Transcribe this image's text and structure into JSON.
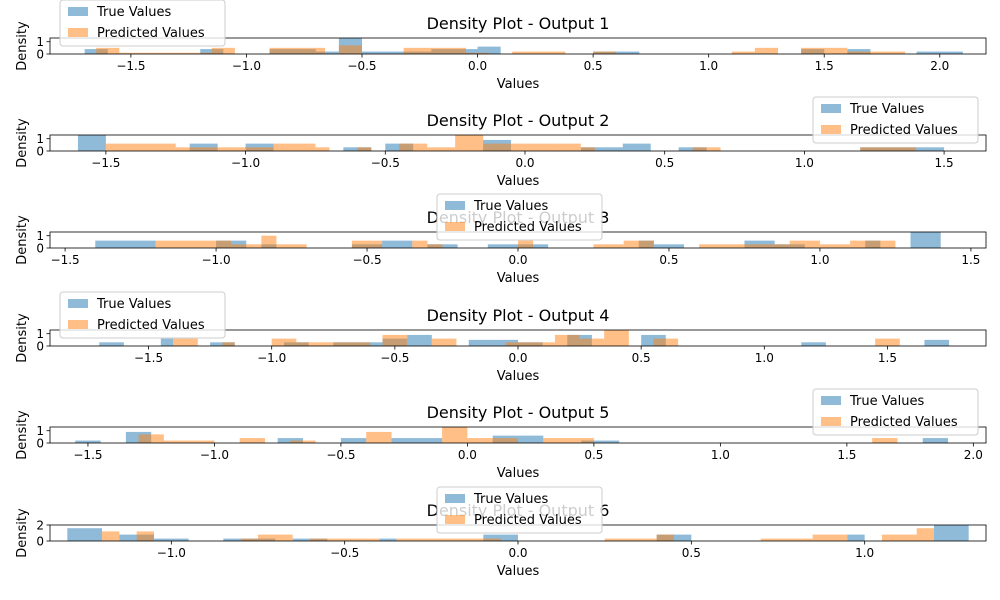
{
  "colors": {
    "true_values": "#1f77b4",
    "predicted_values": "#ff7f0e"
  },
  "chart_data": [
    {
      "type": "histogram",
      "title": "Density Plot - Output 1",
      "xlabel": "Values",
      "ylabel": "Density",
      "xlim": [
        -1.85,
        2.2
      ],
      "ylim": [
        0,
        1.3
      ],
      "xticks": [
        -1.5,
        -1.0,
        -0.5,
        0.0,
        0.5,
        1.0,
        1.5,
        2.0
      ],
      "xtick_labels": [
        "−1.5",
        "−1.0",
        "−0.5",
        "0.0",
        "0.5",
        "1.0",
        "1.5",
        "2.0"
      ],
      "yticks": [
        0,
        1
      ],
      "ytick_labels": [
        "0",
        "1"
      ],
      "legend": {
        "placement": "top-left",
        "entries": [
          "True Values",
          "Predicted Values"
        ]
      },
      "series": [
        {
          "name": "True Values",
          "bins": [
            [
              -1.7,
              -1.6,
              0.4
            ],
            [
              -1.2,
              -1.1,
              0.4
            ],
            [
              -0.9,
              -0.7,
              0.4
            ],
            [
              -0.7,
              -0.6,
              0.2
            ],
            [
              -0.6,
              -0.5,
              1.3
            ],
            [
              -0.5,
              -0.2,
              0.2
            ],
            [
              -0.2,
              0.0,
              0.4
            ],
            [
              0.0,
              0.1,
              0.6
            ],
            [
              0.5,
              0.7,
              0.2
            ],
            [
              1.4,
              1.5,
              0.4
            ],
            [
              1.6,
              1.7,
              0.4
            ],
            [
              1.9,
              2.1,
              0.2
            ]
          ]
        },
        {
          "name": "Predicted Values",
          "bins": [
            [
              -1.65,
              -1.55,
              0.5
            ],
            [
              -1.55,
              -1.15,
              0.1
            ],
            [
              -1.15,
              -1.05,
              0.5
            ],
            [
              -0.9,
              -0.66,
              0.5
            ],
            [
              -0.6,
              -0.5,
              0.7
            ],
            [
              -0.32,
              -0.05,
              0.5
            ],
            [
              -0.05,
              0.05,
              0.1
            ],
            [
              0.15,
              0.38,
              0.2
            ],
            [
              0.5,
              0.6,
              0.2
            ],
            [
              1.1,
              1.2,
              0.2
            ],
            [
              1.2,
              1.3,
              0.5
            ],
            [
              1.4,
              1.6,
              0.5
            ],
            [
              1.6,
              1.85,
              0.2
            ]
          ]
        }
      ]
    },
    {
      "type": "histogram",
      "title": "Density Plot - Output 2",
      "xlabel": "Values",
      "ylabel": "Density",
      "xlim": [
        -1.7,
        1.65
      ],
      "ylim": [
        0,
        1.3
      ],
      "xticks": [
        -1.5,
        -1.0,
        -0.5,
        0.0,
        0.5,
        1.0,
        1.5
      ],
      "xtick_labels": [
        "−1.5",
        "−1.0",
        "−0.5",
        "0.0",
        "0.5",
        "1.0",
        "1.5"
      ],
      "yticks": [
        0,
        1
      ],
      "ytick_labels": [
        "0",
        "1"
      ],
      "legend": {
        "placement": "top-right",
        "entries": [
          "True Values",
          "Predicted Values"
        ]
      },
      "series": [
        {
          "name": "True Values",
          "bins": [
            [
              -1.6,
              -1.5,
              1.3
            ],
            [
              -1.2,
              -1.1,
              0.6
            ],
            [
              -1.0,
              -0.9,
              0.6
            ],
            [
              -0.65,
              -0.55,
              0.3
            ],
            [
              -0.5,
              -0.4,
              0.6
            ],
            [
              -0.15,
              -0.05,
              0.9
            ],
            [
              0.2,
              0.35,
              0.3
            ],
            [
              0.35,
              0.45,
              0.6
            ],
            [
              0.55,
              0.65,
              0.3
            ],
            [
              1.2,
              1.5,
              0.3
            ]
          ]
        },
        {
          "name": "Predicted Values",
          "bins": [
            [
              -1.5,
              -1.25,
              0.6
            ],
            [
              -1.25,
              -1.05,
              0.3
            ],
            [
              -1.05,
              -0.9,
              0.3
            ],
            [
              -0.9,
              -0.75,
              0.6
            ],
            [
              -0.75,
              -0.7,
              0.3
            ],
            [
              -0.6,
              -0.55,
              0.3
            ],
            [
              -0.45,
              -0.35,
              0.6
            ],
            [
              -0.35,
              -0.25,
              0.3
            ],
            [
              -0.25,
              -0.15,
              1.3
            ],
            [
              -0.15,
              0.1,
              0.6
            ],
            [
              0.1,
              0.2,
              0.6
            ],
            [
              0.2,
              0.25,
              0.3
            ],
            [
              0.6,
              0.7,
              0.3
            ],
            [
              1.2,
              1.4,
              0.3
            ]
          ]
        }
      ]
    },
    {
      "type": "histogram",
      "title": "Density Plot - Output 3",
      "xlabel": "Values",
      "ylabel": "Density",
      "xlim": [
        -1.55,
        1.55
      ],
      "ylim": [
        0,
        1.3
      ],
      "xticks": [
        -1.5,
        -1.0,
        -0.5,
        0.0,
        0.5,
        1.0,
        1.5
      ],
      "xtick_labels": [
        "−1.5",
        "−1.0",
        "−0.5",
        "0.0",
        "0.5",
        "1.0",
        "1.5"
      ],
      "yticks": [
        0,
        1
      ],
      "ytick_labels": [
        "0",
        "1"
      ],
      "legend": {
        "placement": "top-center",
        "entries": [
          "True Values",
          "Predicted Values"
        ]
      },
      "series": [
        {
          "name": "True Values",
          "bins": [
            [
              -1.4,
              -1.2,
              0.6
            ],
            [
              -1.0,
              -0.9,
              0.6
            ],
            [
              -0.85,
              -0.8,
              0.3
            ],
            [
              -0.55,
              -0.45,
              0.3
            ],
            [
              -0.45,
              -0.35,
              0.6
            ],
            [
              -0.3,
              -0.2,
              0.3
            ],
            [
              -0.1,
              0.1,
              0.3
            ],
            [
              0.4,
              0.45,
              0.6
            ],
            [
              0.45,
              0.55,
              0.3
            ],
            [
              0.75,
              0.85,
              0.6
            ],
            [
              0.85,
              0.95,
              0.3
            ],
            [
              1.15,
              1.2,
              0.6
            ],
            [
              1.3,
              1.4,
              1.3
            ]
          ]
        },
        {
          "name": "Predicted Values",
          "bins": [
            [
              -1.2,
              -0.95,
              0.6
            ],
            [
              -0.95,
              -0.85,
              0.3
            ],
            [
              -0.85,
              -0.8,
              1.0
            ],
            [
              -0.8,
              -0.7,
              0.3
            ],
            [
              -0.55,
              -0.45,
              0.6
            ],
            [
              -0.35,
              -0.3,
              0.6
            ],
            [
              -0.3,
              -0.25,
              0.3
            ],
            [
              0.0,
              0.05,
              0.6
            ],
            [
              0.25,
              0.35,
              0.3
            ],
            [
              0.35,
              0.45,
              0.6
            ],
            [
              0.6,
              0.9,
              0.3
            ],
            [
              0.9,
              1.0,
              0.6
            ],
            [
              1.0,
              1.1,
              0.3
            ],
            [
              1.1,
              1.25,
              0.6
            ]
          ]
        }
      ]
    },
    {
      "type": "histogram",
      "title": "Density Plot - Output 4",
      "xlabel": "Values",
      "ylabel": "Density",
      "xlim": [
        -1.9,
        1.9
      ],
      "ylim": [
        0,
        1.3
      ],
      "xticks": [
        -1.5,
        -1.0,
        -0.5,
        0.0,
        0.5,
        1.0,
        1.5
      ],
      "xtick_labels": [
        "−1.5",
        "−1.0",
        "−0.5",
        "0.0",
        "0.5",
        "1.0",
        "1.5"
      ],
      "yticks": [
        0,
        1
      ],
      "ytick_labels": [
        "0",
        "1"
      ],
      "legend": {
        "placement": "top-left",
        "entries": [
          "True Values",
          "Predicted Values"
        ]
      },
      "series": [
        {
          "name": "True Values",
          "bins": [
            [
              -1.7,
              -1.6,
              0.3
            ],
            [
              -1.45,
              -1.4,
              0.6
            ],
            [
              -1.25,
              -1.15,
              0.3
            ],
            [
              -0.95,
              -0.85,
              0.3
            ],
            [
              -0.75,
              -0.55,
              0.3
            ],
            [
              -0.55,
              -0.45,
              0.6
            ],
            [
              -0.45,
              -0.35,
              0.9
            ],
            [
              -0.2,
              0.0,
              0.5
            ],
            [
              0.0,
              0.1,
              0.3
            ],
            [
              0.2,
              0.3,
              0.9
            ],
            [
              0.5,
              0.6,
              0.9
            ],
            [
              1.15,
              1.25,
              0.3
            ],
            [
              1.65,
              1.75,
              0.5
            ]
          ]
        },
        {
          "name": "Predicted Values",
          "bins": [
            [
              -1.4,
              -1.3,
              0.6
            ],
            [
              -1.2,
              -1.15,
              0.3
            ],
            [
              -1.0,
              -0.9,
              0.6
            ],
            [
              -0.9,
              -0.6,
              0.3
            ],
            [
              -0.55,
              -0.45,
              0.9
            ],
            [
              -0.35,
              -0.25,
              0.6
            ],
            [
              -0.05,
              0.15,
              0.3
            ],
            [
              0.15,
              0.25,
              0.9
            ],
            [
              0.25,
              0.35,
              0.6
            ],
            [
              0.35,
              0.45,
              1.3
            ],
            [
              0.55,
              0.65,
              0.6
            ],
            [
              1.45,
              1.55,
              0.6
            ]
          ]
        }
      ]
    },
    {
      "type": "histogram",
      "title": "Density Plot - Output 5",
      "xlabel": "Values",
      "ylabel": "Density",
      "xlim": [
        -1.65,
        2.05
      ],
      "ylim": [
        0,
        1.3
      ],
      "xticks": [
        -1.5,
        -1.0,
        -0.5,
        0.0,
        0.5,
        1.0,
        1.5,
        2.0
      ],
      "xtick_labels": [
        "−1.5",
        "−1.0",
        "−0.5",
        "0.0",
        "0.5",
        "1.0",
        "1.5",
        "2.0"
      ],
      "yticks": [
        0,
        1
      ],
      "ytick_labels": [
        "0",
        "1"
      ],
      "legend": {
        "placement": "top-right",
        "entries": [
          "True Values",
          "Predicted Values"
        ]
      },
      "series": [
        {
          "name": "True Values",
          "bins": [
            [
              -1.55,
              -1.45,
              0.2
            ],
            [
              -1.35,
              -1.25,
              0.9
            ],
            [
              -0.75,
              -0.65,
              0.4
            ],
            [
              -0.5,
              -0.4,
              0.4
            ],
            [
              -0.3,
              -0.1,
              0.4
            ],
            [
              0.1,
              0.2,
              0.6
            ],
            [
              0.2,
              0.3,
              0.6
            ],
            [
              0.45,
              0.6,
              0.2
            ],
            [
              1.8,
              1.9,
              0.4
            ]
          ]
        },
        {
          "name": "Predicted Values",
          "bins": [
            [
              -1.3,
              -1.2,
              0.7
            ],
            [
              -1.2,
              -1.0,
              0.2
            ],
            [
              -0.9,
              -0.8,
              0.4
            ],
            [
              -0.7,
              -0.6,
              0.2
            ],
            [
              -0.4,
              -0.3,
              0.9
            ],
            [
              -0.1,
              0.0,
              1.3
            ],
            [
              0.0,
              0.2,
              0.4
            ],
            [
              0.3,
              0.5,
              0.4
            ],
            [
              1.6,
              1.7,
              0.4
            ]
          ]
        }
      ]
    },
    {
      "type": "histogram",
      "title": "Density Plot - Output 6",
      "xlabel": "Values",
      "ylabel": "Density",
      "xlim": [
        -1.35,
        1.35
      ],
      "ylim": [
        0,
        2.0
      ],
      "xticks": [
        -1.0,
        -0.5,
        0.0,
        0.5,
        1.0
      ],
      "xtick_labels": [
        "−1.0",
        "−0.5",
        "0.0",
        "0.5",
        "1.0"
      ],
      "yticks": [
        0,
        2
      ],
      "ytick_labels": [
        "0",
        "2"
      ],
      "legend": {
        "placement": "top-center",
        "entries": [
          "True Values",
          "Predicted Values"
        ]
      },
      "series": [
        {
          "name": "True Values",
          "bins": [
            [
              -1.3,
              -1.2,
              1.6
            ],
            [
              -1.15,
              -1.05,
              0.8
            ],
            [
              -1.05,
              -0.95,
              0.3
            ],
            [
              -0.85,
              -0.7,
              0.3
            ],
            [
              -0.65,
              -0.55,
              0.3
            ],
            [
              -0.4,
              -0.35,
              0.3
            ],
            [
              -0.1,
              0.0,
              0.8
            ],
            [
              0.4,
              0.5,
              0.8
            ],
            [
              0.95,
              1.0,
              0.8
            ],
            [
              1.2,
              1.3,
              2.0
            ]
          ]
        },
        {
          "name": "Predicted Values",
          "bins": [
            [
              -1.2,
              -1.15,
              1.2
            ],
            [
              -1.1,
              -1.05,
              1.2
            ],
            [
              -0.8,
              -0.75,
              0.3
            ],
            [
              -0.75,
              -0.65,
              0.8
            ],
            [
              -0.6,
              -0.4,
              0.3
            ],
            [
              -0.35,
              -0.25,
              0.3
            ],
            [
              -0.25,
              -0.15,
              0.3
            ],
            [
              -0.15,
              -0.05,
              0.3
            ],
            [
              0.25,
              0.4,
              0.3
            ],
            [
              0.4,
              0.45,
              0.8
            ],
            [
              0.7,
              0.85,
              0.3
            ],
            [
              0.85,
              0.95,
              0.8
            ],
            [
              1.05,
              1.15,
              0.8
            ],
            [
              1.15,
              1.2,
              1.6
            ]
          ]
        }
      ]
    }
  ]
}
